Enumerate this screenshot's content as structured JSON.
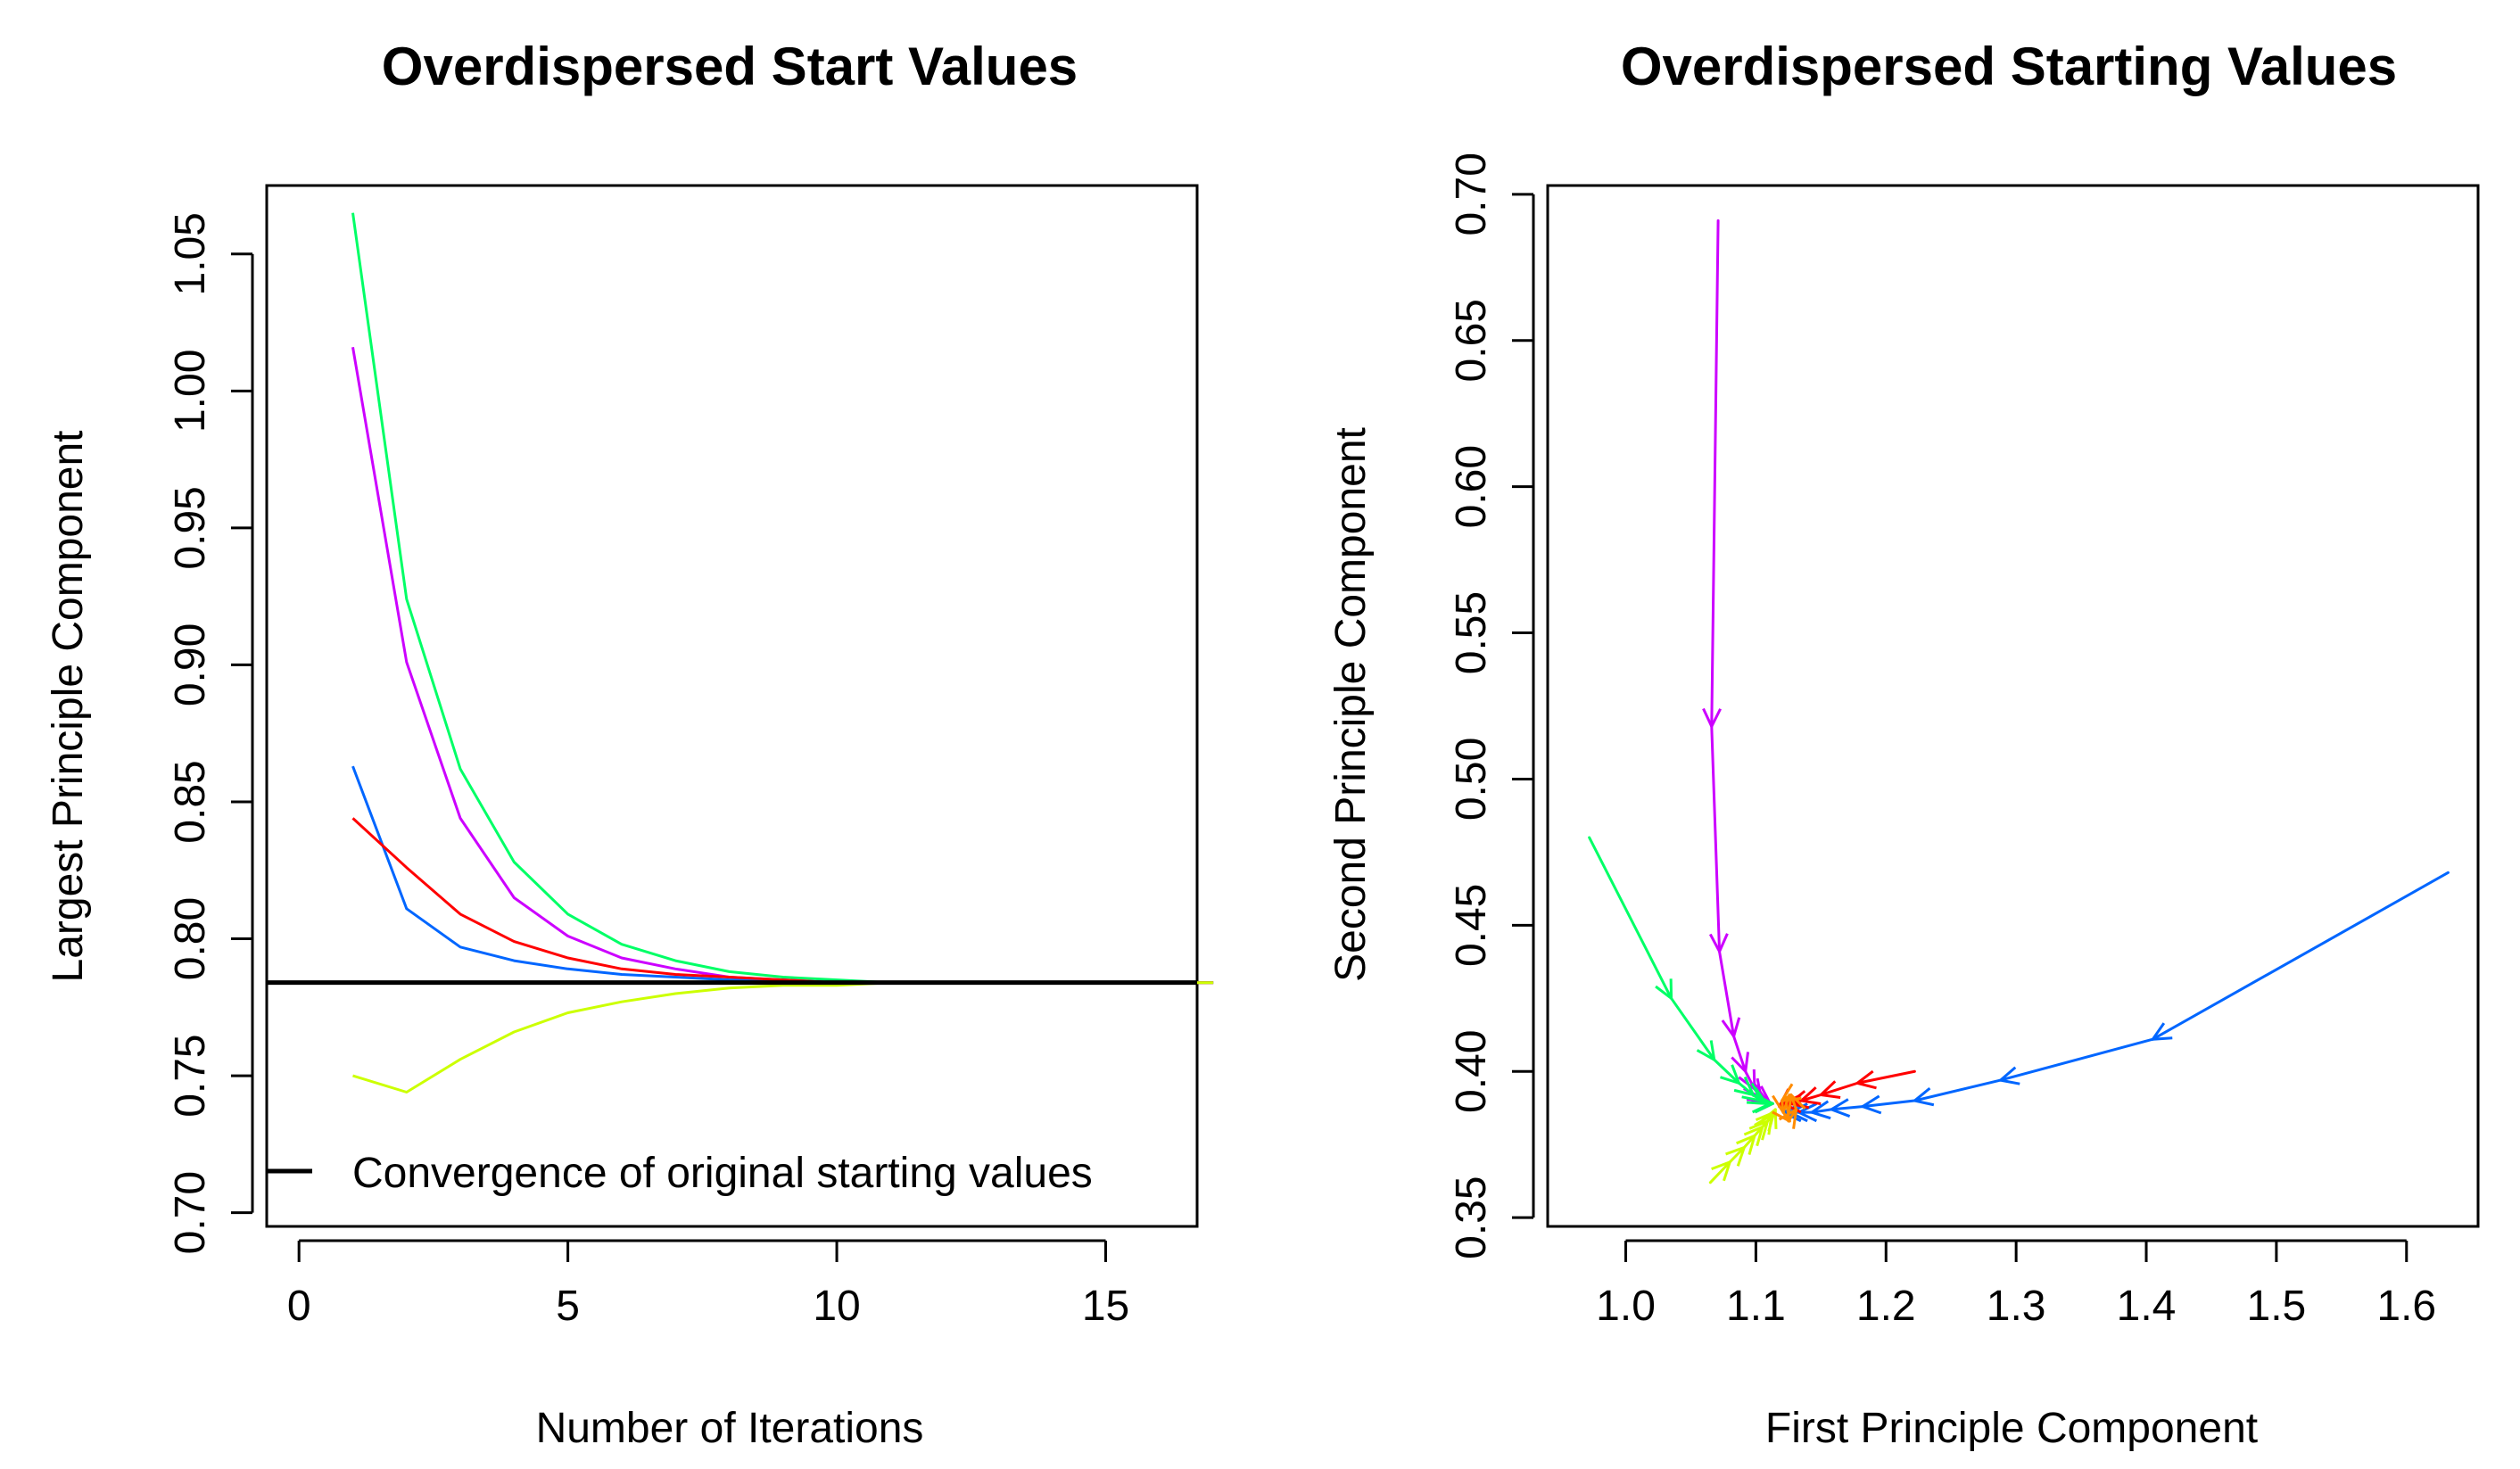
{
  "chart_data": [
    {
      "type": "line",
      "title": "Overdispersed Start Values",
      "xlabel": "Number of Iterations",
      "ylabel": "Largest Principle Component",
      "xlim": [
        -0.6,
        16.7
      ],
      "ylim": [
        0.695,
        1.075
      ],
      "xticks": [
        "0",
        "5",
        "10",
        "15"
      ],
      "yticks": [
        "0.70",
        "0.75",
        "0.80",
        "0.85",
        "0.90",
        "0.95",
        "1.00",
        "1.05"
      ],
      "reference_line": {
        "y": 0.784,
        "color": "#000000",
        "legend": "Convergence of original starting values"
      },
      "legend_position": "bottom-left",
      "x": [
        1,
        2,
        3,
        4,
        5,
        6,
        7,
        8,
        9,
        10,
        11,
        12,
        13,
        14,
        15,
        16,
        17
      ],
      "series": [
        {
          "color": "#00ff66",
          "values": [
            1.065,
            0.924,
            0.862,
            0.828,
            0.809,
            0.798,
            0.792,
            0.788,
            0.786,
            0.785,
            0.784,
            0.784,
            0.784,
            0.784,
            0.784,
            0.784,
            0.784
          ]
        },
        {
          "color": "#cc00ff",
          "values": [
            1.016,
            0.901,
            0.844,
            0.815,
            0.801,
            0.793,
            0.789,
            0.786,
            0.785,
            0.784,
            0.784,
            0.784,
            0.784,
            0.784,
            0.784,
            0.784,
            0.784
          ]
        },
        {
          "color": "#0066ff",
          "values": [
            0.863,
            0.811,
            0.797,
            0.792,
            0.789,
            0.787,
            0.786,
            0.785,
            0.785,
            0.784,
            0.784,
            0.784,
            0.784,
            0.784,
            0.784,
            0.784,
            0.784
          ]
        },
        {
          "color": "#ff0000",
          "values": [
            0.844,
            0.826,
            0.809,
            0.799,
            0.793,
            0.789,
            0.787,
            0.786,
            0.785,
            0.784,
            0.784,
            0.784,
            0.784,
            0.784,
            0.784,
            0.784,
            0.784
          ]
        },
        {
          "color": "#ccff00",
          "values": [
            0.75,
            0.744,
            0.756,
            0.766,
            0.773,
            0.777,
            0.78,
            0.782,
            0.783,
            0.783,
            0.784,
            0.784,
            0.784,
            0.784,
            0.784,
            0.784,
            0.784
          ]
        }
      ]
    },
    {
      "type": "line",
      "title": "Overdispersed Starting Values",
      "xlabel": "First Principle Component",
      "ylabel": "Second Principle Component",
      "xlim": [
        0.94,
        1.655
      ],
      "ylim": [
        0.347,
        0.703
      ],
      "xticks": [
        "1.0",
        "1.1",
        "1.2",
        "1.3",
        "1.4",
        "1.5",
        "1.6"
      ],
      "yticks": [
        "0.35",
        "0.40",
        "0.45",
        "0.50",
        "0.55",
        "0.60",
        "0.65",
        "0.70"
      ],
      "arrows": true,
      "series": [
        {
          "color": "#cc00ff",
          "x": [
            1.071,
            1.066,
            1.072,
            1.083,
            1.092,
            1.099,
            1.104,
            1.108,
            1.111,
            1.113
          ],
          "y": [
            0.691,
            0.518,
            0.441,
            0.412,
            0.4,
            0.394,
            0.391,
            0.39,
            0.389,
            0.389
          ]
        },
        {
          "color": "#00ff66",
          "x": [
            0.972,
            1.035,
            1.068,
            1.087,
            1.098,
            1.104,
            1.108,
            1.111,
            1.113
          ],
          "y": [
            0.48,
            0.425,
            0.404,
            0.396,
            0.392,
            0.39,
            0.389,
            0.389,
            0.389
          ]
        },
        {
          "color": "#0066ff",
          "x": [
            1.632,
            1.405,
            1.288,
            1.222,
            1.182,
            1.158,
            1.143,
            1.133,
            1.126,
            1.121
          ],
          "y": [
            0.468,
            0.411,
            0.397,
            0.39,
            0.388,
            0.387,
            0.386,
            0.386,
            0.386,
            0.386
          ]
        },
        {
          "color": "#ff0000",
          "x": [
            1.222,
            1.178,
            1.15,
            1.135,
            1.126,
            1.121,
            1.118
          ],
          "y": [
            0.4,
            0.396,
            0.392,
            0.39,
            0.389,
            0.389,
            0.388
          ]
        },
        {
          "color": "#ccff00",
          "x": [
            1.065,
            1.08,
            1.091,
            1.099,
            1.105,
            1.109,
            1.112,
            1.114,
            1.115
          ],
          "y": [
            0.362,
            0.369,
            0.374,
            0.378,
            0.381,
            0.383,
            0.385,
            0.386,
            0.387
          ]
        },
        {
          "color": "#ff8c00",
          "x": [
            1.125,
            1.131,
            1.127,
            1.12,
            1.121,
            1.126
          ],
          "y": [
            0.383,
            0.387,
            0.392,
            0.39,
            0.386,
            0.383
          ]
        }
      ]
    }
  ]
}
